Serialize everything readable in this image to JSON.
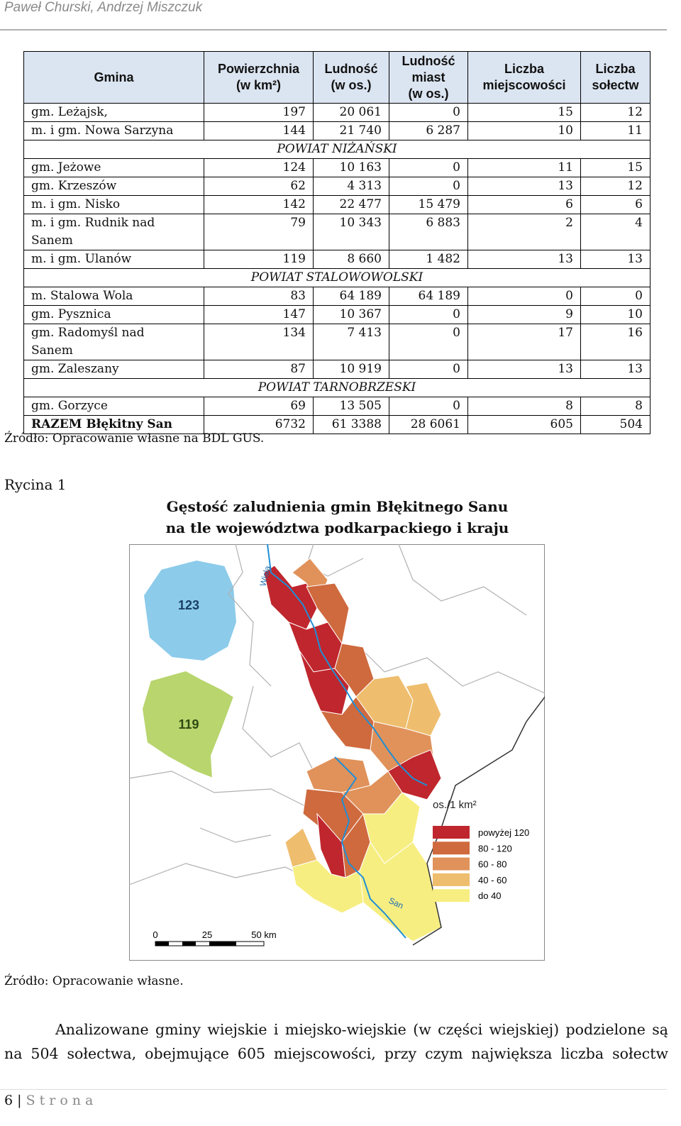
{
  "header": {
    "authors": "Paweł Churski, Andrzej Miszczuk"
  },
  "table": {
    "columns": [
      [
        "Gmina"
      ],
      [
        "Powierzchnia",
        "(w km²)"
      ],
      [
        "Ludność",
        "(w os.)"
      ],
      [
        "Ludność",
        "miast",
        "(w os.)"
      ],
      [
        "Liczba",
        "miejscowości"
      ],
      [
        "Liczba",
        "sołectw"
      ]
    ],
    "rows": [
      {
        "cells": [
          "gm. Leżajsk,",
          "197",
          "20 061",
          "0",
          "15",
          "12"
        ]
      },
      {
        "cells": [
          "m. i gm. Nowa Sarzyna",
          "144",
          "21 740",
          "6 287",
          "10",
          "11"
        ]
      },
      {
        "section": "POWIAT NIŻAŃSKI"
      },
      {
        "cells": [
          "gm. Jeżowe",
          "124",
          "10 163",
          "0",
          "11",
          "15"
        ]
      },
      {
        "cells": [
          "gm. Krzeszów",
          "62",
          "4 313",
          "0",
          "13",
          "12"
        ]
      },
      {
        "cells": [
          "m. i gm. Nisko",
          "142",
          "22 477",
          "15 479",
          "6",
          "6"
        ]
      },
      {
        "cells": [
          "m. i gm. Rudnik nad Sanem",
          "79",
          "10 343",
          "6 883",
          "2",
          "4"
        ]
      },
      {
        "cells": [
          "m. i gm. Ulanów",
          "119",
          "8 660",
          "1 482",
          "13",
          "13"
        ]
      },
      {
        "section": "POWIAT STALOWOWOLSKI"
      },
      {
        "cells": [
          "m. Stalowa Wola",
          "83",
          "64 189",
          "64 189",
          "0",
          "0"
        ]
      },
      {
        "cells": [
          "gm. Pysznica",
          "147",
          "10 367",
          "0",
          "9",
          "10"
        ]
      },
      {
        "cells": [
          "gm. Radomyśl nad Sanem",
          "134",
          "7 413",
          "0",
          "17",
          "16"
        ]
      },
      {
        "cells": [
          "gm. Zaleszany",
          "87",
          "10 919",
          "0",
          "13",
          "13"
        ]
      },
      {
        "section": "POWIAT TARNOBRZESKI"
      },
      {
        "cells": [
          "gm. Gorzyce",
          "69",
          "13 505",
          "0",
          "8",
          "8"
        ]
      }
    ],
    "total": [
      "RAZEM Błękitny San",
      "6732",
      "61 3388",
      "28 6061",
      "605",
      "504"
    ],
    "source": "Źródło: Opracowanie własne na BDL GUS."
  },
  "figure": {
    "label": "Rycina 1",
    "title_lines": [
      "Gęstość zaludnienia gmin Błękitnego Sanu",
      "na tle województwa podkarpackiego i kraju"
    ],
    "map": {
      "country_value": "123",
      "region_value": "119",
      "rivers": [
        "Wisła",
        "San"
      ],
      "legend_title": "os./1 km²",
      "legend": [
        {
          "label": "powyżej 120",
          "color": "#c0262d"
        },
        {
          "label": "80 - 120",
          "color": "#cf6a3e"
        },
        {
          "label": "60 - 80",
          "color": "#e0925a"
        },
        {
          "label": "40 - 60",
          "color": "#eebe6e"
        },
        {
          "label": "do 40",
          "color": "#f7ee82"
        }
      ],
      "scale": [
        "0",
        "25",
        "50 km"
      ]
    },
    "source": "Źródło: Opracowanie własne."
  },
  "paragraph": [
    "Analizowane gminy wiejskie i miejsko-wiejskie (w części wiejskiej) podzielone są",
    "na 504 sołectwa, obejmujące 605 miejscowości, przy czym największa liczba sołectw"
  ],
  "footer": {
    "page": "6",
    "separator": "|",
    "label": "Strona"
  }
}
